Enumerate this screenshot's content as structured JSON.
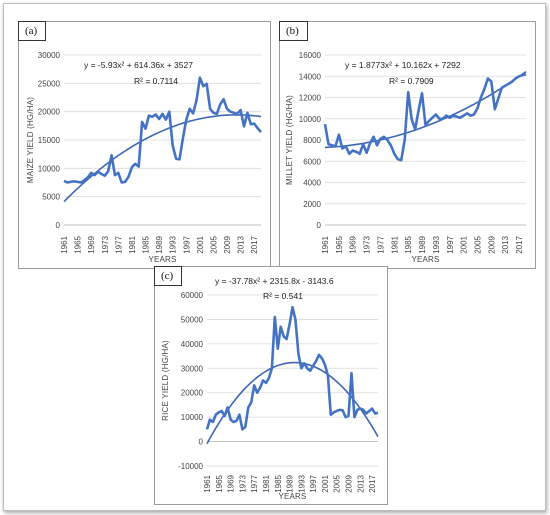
{
  "chart_data": [
    {
      "type": "line",
      "panel_label": "(a)",
      "xlabel": "YEARS",
      "ylabel": "MAIZE YIELD (HG/HA)",
      "ylim": [
        0,
        30000
      ],
      "yticks": [
        "0",
        "5000",
        "10000",
        "15000",
        "20000",
        "25000",
        "30000"
      ],
      "xticks": [
        "1961",
        "1965",
        "1969",
        "1973",
        "1977",
        "1981",
        "1985",
        "1989",
        "1993",
        "1997",
        "2001",
        "2005",
        "2009",
        "2013",
        "2017"
      ],
      "equation": "y = -5.93x² + 614.36x + 3527",
      "r2": "R² = 0.7114",
      "trend": [
        -5.93,
        614.36,
        3527
      ],
      "series": [
        {
          "x": [
            1961,
            1962,
            1963,
            1964,
            1965,
            1966,
            1967,
            1968,
            1969,
            1970,
            1971,
            1972,
            1973,
            1974,
            1975,
            1976,
            1977,
            1978,
            1979,
            1980,
            1981,
            1982,
            1983,
            1984,
            1985,
            1986,
            1987,
            1988,
            1989,
            1990,
            1991,
            1992,
            1993,
            1994,
            1995,
            1996,
            1997,
            1998,
            1999,
            2000,
            2001,
            2002,
            2003,
            2004,
            2005,
            2006,
            2007,
            2008,
            2009,
            2010,
            2011,
            2012,
            2013,
            2014,
            2015,
            2016,
            2017,
            2018,
            2019
          ],
          "values": [
            7800,
            7500,
            7600,
            7700,
            7600,
            7500,
            7900,
            8400,
            9200,
            8800,
            9400,
            9000,
            8700,
            9500,
            12300,
            8800,
            9200,
            7500,
            7600,
            8500,
            10200,
            10800,
            10300,
            18200,
            17000,
            19300,
            19100,
            19500,
            18700,
            19600,
            18600,
            20000,
            14000,
            11700,
            11600,
            15300,
            18600,
            20500,
            19700,
            22000,
            26000,
            24500,
            24900,
            20500,
            19800,
            19600,
            21300,
            22200,
            20500,
            20000,
            19800,
            19600,
            20300,
            17400,
            19800,
            17800,
            17900,
            17100,
            16400
          ]
        }
      ]
    },
    {
      "type": "line",
      "panel_label": "(b)",
      "xlabel": "YEARS",
      "ylabel": "MILLET YIELD (HG/HA)",
      "ylim": [
        0,
        16000
      ],
      "yticks": [
        "0",
        "2000",
        "4000",
        "6000",
        "8000",
        "10000",
        "12000",
        "14000",
        "16000"
      ],
      "xticks": [
        "1961",
        "1965",
        "1969",
        "1973",
        "1977",
        "1981",
        "1985",
        "1989",
        "1993",
        "1997",
        "2001",
        "2005",
        "2009",
        "2013",
        "2017"
      ],
      "equation": "y = 1.8773x² + 10.162x + 7292",
      "r2": "R² = 0.7909",
      "trend": [
        1.8773,
        10.162,
        7292
      ],
      "series": [
        {
          "x": [
            1961,
            1962,
            1963,
            1964,
            1965,
            1966,
            1967,
            1968,
            1969,
            1970,
            1971,
            1972,
            1973,
            1974,
            1975,
            1976,
            1977,
            1978,
            1979,
            1980,
            1981,
            1982,
            1983,
            1984,
            1985,
            1986,
            1987,
            1988,
            1989,
            1990,
            1991,
            1992,
            1993,
            1994,
            1995,
            1996,
            1997,
            1998,
            1999,
            2000,
            2001,
            2002,
            2003,
            2004,
            2005,
            2006,
            2007,
            2008,
            2009,
            2010,
            2011,
            2012,
            2013,
            2014,
            2015,
            2016,
            2017,
            2018,
            2019
          ],
          "values": [
            9500,
            7600,
            7500,
            7400,
            8500,
            7200,
            7400,
            6700,
            7000,
            6900,
            6700,
            7600,
            6800,
            7700,
            8300,
            7500,
            8100,
            8300,
            8000,
            7500,
            6700,
            6200,
            6100,
            8000,
            12500,
            10000,
            9000,
            10800,
            12400,
            9400,
            9800,
            10100,
            10400,
            10000,
            10000,
            10300,
            10100,
            10300,
            10200,
            10100,
            10300,
            10500,
            10300,
            10400,
            11000,
            12000,
            12800,
            13800,
            13500,
            10900,
            11900,
            12900,
            13100,
            13300,
            13500,
            13800,
            14000,
            14100,
            14200
          ]
        }
      ]
    },
    {
      "type": "line",
      "panel_label": "(c)",
      "xlabel": "YEARS",
      "ylabel": "RICE YIELD (HG/HA)",
      "ylim": [
        -10000,
        60000
      ],
      "yticks": [
        "-10000",
        "0",
        "10000",
        "20000",
        "30000",
        "40000",
        "50000",
        "60000"
      ],
      "xticks": [
        "1961",
        "1965",
        "1969",
        "1973",
        "1977",
        "1981",
        "1985",
        "1989",
        "1993",
        "1997",
        "2001",
        "2005",
        "2009",
        "2013",
        "2017"
      ],
      "equation": "y = -37.78x² + 2315.8x - 3143.6",
      "r2": "R² = 0.541",
      "trend": [
        -37.78,
        2315.8,
        -3143.6
      ],
      "series": [
        {
          "x": [
            1961,
            1962,
            1963,
            1964,
            1965,
            1966,
            1967,
            1968,
            1969,
            1970,
            1971,
            1972,
            1973,
            1974,
            1975,
            1976,
            1977,
            1978,
            1979,
            1980,
            1981,
            1982,
            1983,
            1984,
            1985,
            1986,
            1987,
            1988,
            1989,
            1990,
            1991,
            1992,
            1993,
            1994,
            1995,
            1996,
            1997,
            1998,
            1999,
            2000,
            2001,
            2002,
            2003,
            2004,
            2005,
            2006,
            2007,
            2008,
            2009,
            2010,
            2011,
            2012,
            2013,
            2014,
            2015,
            2016,
            2017,
            2018,
            2019
          ],
          "values": [
            5000,
            9000,
            8000,
            11000,
            12000,
            12500,
            10500,
            14000,
            9000,
            8000,
            8500,
            11000,
            5000,
            6000,
            14000,
            16000,
            23000,
            20000,
            22000,
            25000,
            24000,
            26000,
            30000,
            51000,
            38000,
            47000,
            43000,
            42000,
            48000,
            55000,
            50000,
            36000,
            30000,
            32000,
            30000,
            29000,
            31000,
            33000,
            35500,
            34000,
            31500,
            27000,
            11000,
            12000,
            12500,
            13000,
            12800,
            10000,
            10500,
            28000,
            10000,
            13000,
            13500,
            13000,
            11500,
            12500,
            13500,
            11500,
            11800
          ]
        }
      ]
    }
  ]
}
